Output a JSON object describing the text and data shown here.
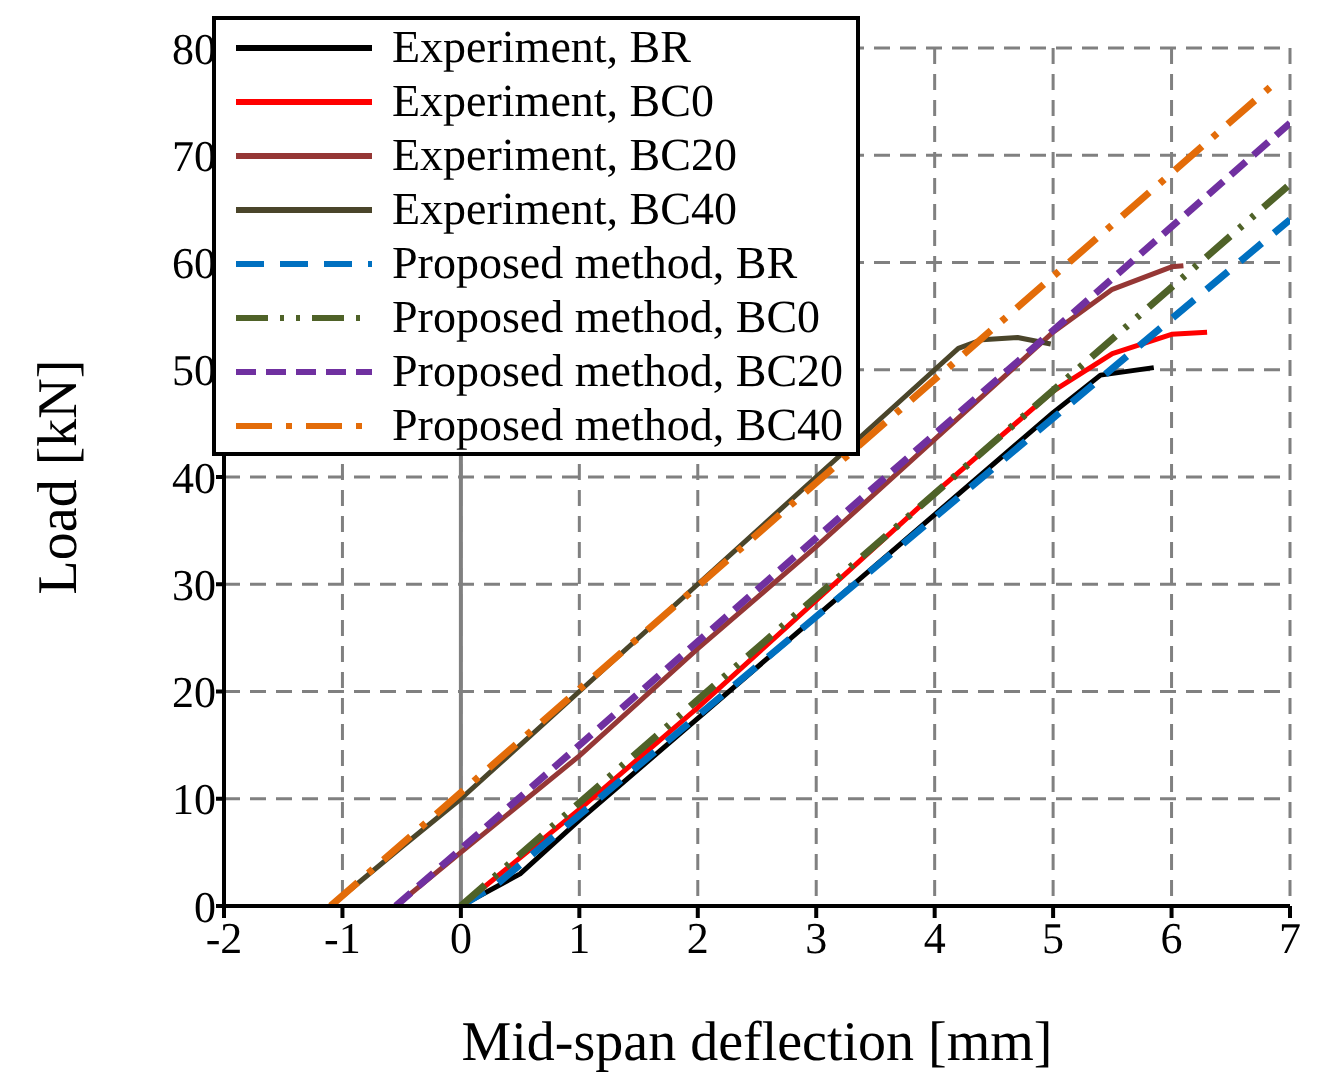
{
  "chart_data": {
    "type": "line",
    "xlabel": "Mid-span deflection [mm]",
    "ylabel": "Load [kN]",
    "xlim": [
      -2,
      7
    ],
    "xticks": [
      -2,
      -1,
      0,
      1,
      2,
      3,
      4,
      5,
      6,
      7
    ],
    "ylim": [
      0,
      80
    ],
    "yticks": [
      0,
      10,
      20,
      30,
      40,
      50,
      60,
      70,
      80
    ],
    "grid": true,
    "legend": "top left",
    "marker": "none",
    "ref_lines": [
      {
        "axis": "x",
        "value": 0,
        "color": "#808080"
      }
    ],
    "series": [
      {
        "name": "Experiment, BR",
        "color": "#000000",
        "line_style": "solid",
        "x": [
          0,
          0.5,
          1,
          2,
          3,
          4,
          5,
          5.4,
          5.85
        ],
        "values": [
          0,
          3,
          8,
          17.5,
          27,
          36.5,
          46,
          49.5,
          50.2
        ]
      },
      {
        "name": "Experiment, BC0",
        "color": "#ff0000",
        "line_style": "solid",
        "x": [
          0,
          1,
          2,
          3,
          4,
          5,
          5.5,
          6,
          6.3
        ],
        "values": [
          0,
          9,
          18.5,
          28.5,
          38.5,
          48,
          51.5,
          53.3,
          53.5
        ]
      },
      {
        "name": "Experiment, BC20",
        "color": "#953735",
        "line_style": "solid",
        "x": [
          -0.55,
          0,
          1,
          2,
          3,
          4,
          5,
          5.5,
          6,
          6.1
        ],
        "values": [
          0,
          5,
          14,
          24,
          33.5,
          43.5,
          53.5,
          57.5,
          59.6,
          59.7
        ]
      },
      {
        "name": "Experiment, BC40",
        "color": "#4a452a",
        "line_style": "solid",
        "x": [
          -1.1,
          -0.5,
          0,
          1,
          2,
          3,
          4,
          4.2,
          4.4,
          4.7,
          4.98
        ],
        "values": [
          0,
          5.5,
          10,
          20,
          30,
          40,
          50,
          52,
          52.8,
          53,
          52.4
        ]
      },
      {
        "name": "Proposed method, BR",
        "color": "#0070c0",
        "line_style": "dashed",
        "x": [
          0,
          0.3,
          7
        ],
        "values": [
          0,
          2,
          64
        ]
      },
      {
        "name": "Proposed method, BC0",
        "color": "#4f6228",
        "line_style": "dashed",
        "x": [
          0,
          7
        ],
        "values": [
          0,
          67.3
        ]
      },
      {
        "name": "Proposed method, BC20",
        "color": "#7030a0",
        "line_style": "dashed",
        "x": [
          -0.55,
          7
        ],
        "values": [
          0,
          73
        ]
      },
      {
        "name": "Proposed method, BC40",
        "color": "#e36c09",
        "line_style": "dashed",
        "x": [
          -1.1,
          6.9
        ],
        "values": [
          0,
          77
        ]
      }
    ]
  }
}
